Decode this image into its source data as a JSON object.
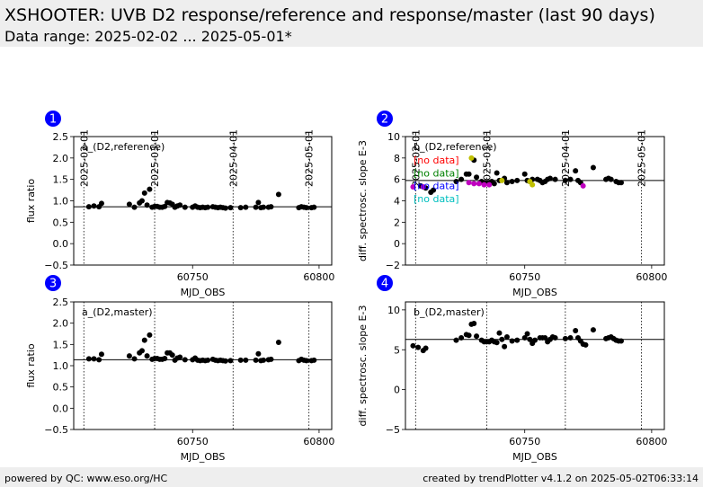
{
  "header": {
    "title": "XSHOOTER: UVB D2 response/reference and response/master (last 90 days)",
    "subtitle": "Data range: 2025-02-02 ... 2025-05-01*"
  },
  "footer": {
    "left": "powered by QC: www.eso.org/HC",
    "right": "created by trendPlotter v4.1.2 on 2025-05-02T06:33:14"
  },
  "date_markers": [
    {
      "label": "2025-02-01",
      "mjd": 60707
    },
    {
      "label": "2025-03-01",
      "mjd": 60735
    },
    {
      "label": "2025-04-01",
      "mjd": 60766
    },
    {
      "label": "2025-05-01",
      "mjd": 60796
    }
  ],
  "colors": {
    "black": "#000000",
    "red": "#ff0000",
    "green": "#008000",
    "blue": "#0000ff",
    "cyan": "#00bfbf",
    "magenta": "#bf00bf",
    "olive": "#bfbf00",
    "badge": "#0000ff"
  },
  "chart_data": [
    {
      "id": "1",
      "type": "scatter",
      "label": "a_(D2,reference)",
      "xlabel": "MJD_OBS",
      "ylabel": "flux ratio",
      "xlim": [
        60703,
        60805
      ],
      "ylim": [
        -0.5,
        2.5
      ],
      "xticks": [
        60750,
        60800
      ],
      "yticks": [
        -0.5,
        0.0,
        0.5,
        1.0,
        1.5,
        2.0,
        2.5
      ],
      "ytick_labels": [
        "−0.5",
        "0.0",
        "0.5",
        "1.0",
        "1.5",
        "2.0",
        "2.5"
      ],
      "reference_line": 0.86,
      "series": [
        {
          "color": "black",
          "points": [
            [
              60709,
              0.86
            ],
            [
              60711,
              0.88
            ],
            [
              60713,
              0.86
            ],
            [
              60714,
              0.94
            ],
            [
              60725,
              0.92
            ],
            [
              60727,
              0.85
            ],
            [
              60729,
              0.95
            ],
            [
              60730,
              1.0
            ],
            [
              60731,
              1.18
            ],
            [
              60732,
              0.9
            ],
            [
              60733,
              1.27
            ],
            [
              60734,
              0.85
            ],
            [
              60735,
              0.87
            ],
            [
              60736,
              0.87
            ],
            [
              60737,
              0.85
            ],
            [
              60738,
              0.85
            ],
            [
              60739,
              0.87
            ],
            [
              60740,
              0.96
            ],
            [
              60741,
              0.95
            ],
            [
              60742,
              0.92
            ],
            [
              60743,
              0.85
            ],
            [
              60744,
              0.88
            ],
            [
              60745,
              0.9
            ],
            [
              60747,
              0.85
            ],
            [
              60750,
              0.85
            ],
            [
              60751,
              0.88
            ],
            [
              60752,
              0.85
            ],
            [
              60753,
              0.84
            ],
            [
              60754,
              0.85
            ],
            [
              60755,
              0.84
            ],
            [
              60756,
              0.85
            ],
            [
              60758,
              0.86
            ],
            [
              60759,
              0.85
            ],
            [
              60760,
              0.84
            ],
            [
              60761,
              0.85
            ],
            [
              60762,
              0.84
            ],
            [
              60763,
              0.83
            ],
            [
              60765,
              0.84
            ],
            [
              60769,
              0.84
            ],
            [
              60771,
              0.85
            ],
            [
              60775,
              0.85
            ],
            [
              60776,
              0.96
            ],
            [
              60777,
              0.84
            ],
            [
              60778,
              0.85
            ],
            [
              60780,
              0.85
            ],
            [
              60781,
              0.86
            ],
            [
              60784,
              1.15
            ],
            [
              60792,
              0.84
            ],
            [
              60793,
              0.86
            ],
            [
              60794,
              0.85
            ],
            [
              60795,
              0.84
            ],
            [
              60797,
              0.84
            ],
            [
              60798,
              0.85
            ]
          ]
        }
      ]
    },
    {
      "id": "2",
      "type": "scatter",
      "label": "b_(D2,reference)",
      "xlabel": "MJD_OBS",
      "ylabel": "diff. spectrosc. slope E-3",
      "xlim": [
        60703,
        60805
      ],
      "ylim": [
        -2,
        10
      ],
      "xticks": [
        60750,
        60800
      ],
      "yticks": [
        -2,
        0,
        2,
        4,
        6,
        8,
        10
      ],
      "ytick_labels": [
        "−2",
        "0",
        "2",
        "4",
        "6",
        "8",
        "10"
      ],
      "reference_line": 5.9,
      "legend": [
        {
          "text": "[no data]",
          "color": "red"
        },
        {
          "text": "[no data]",
          "color": "green"
        },
        {
          "text": "[no data]",
          "color": "blue"
        },
        {
          "text": "[no data]",
          "color": "cyan"
        }
      ],
      "series": [
        {
          "color": "black",
          "points": [
            [
              60709,
              5.4
            ],
            [
              60711,
              5.2
            ],
            [
              60713,
              4.8
            ],
            [
              60714,
              5.0
            ],
            [
              60723,
              5.8
            ],
            [
              60725,
              6.0
            ],
            [
              60727,
              6.5
            ],
            [
              60728,
              6.5
            ],
            [
              60730,
              7.8
            ],
            [
              60731,
              6.2
            ],
            [
              60733,
              5.8
            ],
            [
              60734,
              5.7
            ],
            [
              60736,
              5.7
            ],
            [
              60737,
              5.8
            ],
            [
              60738,
              5.6
            ],
            [
              60739,
              6.6
            ],
            [
              60740,
              5.9
            ],
            [
              60742,
              6.1
            ],
            [
              60743,
              5.7
            ],
            [
              60745,
              5.8
            ],
            [
              60747,
              5.9
            ],
            [
              60750,
              6.5
            ],
            [
              60751,
              5.9
            ],
            [
              60752,
              5.8
            ],
            [
              60753,
              6.0
            ],
            [
              60755,
              6.0
            ],
            [
              60756,
              5.9
            ],
            [
              60757,
              5.7
            ],
            [
              60758,
              5.8
            ],
            [
              60759,
              6.0
            ],
            [
              60760,
              6.1
            ],
            [
              60762,
              6.0
            ],
            [
              60766,
              5.9
            ],
            [
              60768,
              6.0
            ],
            [
              60770,
              6.8
            ],
            [
              60771,
              5.9
            ],
            [
              60772,
              5.7
            ],
            [
              60777,
              7.1
            ],
            [
              60782,
              6.0
            ],
            [
              60783,
              6.1
            ],
            [
              60784,
              6.0
            ],
            [
              60786,
              5.8
            ],
            [
              60787,
              5.7
            ],
            [
              60788,
              5.7
            ]
          ]
        },
        {
          "color": "magenta",
          "points": [
            [
              60706,
              5.3
            ],
            [
              60710,
              5.3
            ],
            [
              60728,
              5.7
            ],
            [
              60730,
              5.6
            ],
            [
              60732,
              5.6
            ],
            [
              60734,
              5.5
            ],
            [
              60736,
              5.5
            ],
            [
              60773,
              5.4
            ]
          ]
        },
        {
          "color": "olive",
          "points": [
            [
              60729,
              8.0
            ],
            [
              60741,
              5.9
            ],
            [
              60752,
              5.8
            ],
            [
              60753,
              5.5
            ]
          ]
        }
      ]
    },
    {
      "id": "3",
      "type": "scatter",
      "label": "a_(D2,master)",
      "xlabel": "MJD_OBS",
      "ylabel": "flux ratio",
      "xlim": [
        60703,
        60805
      ],
      "ylim": [
        -0.5,
        2.5
      ],
      "xticks": [
        60750,
        60800
      ],
      "yticks": [
        -0.5,
        0.0,
        0.5,
        1.0,
        1.5,
        2.0,
        2.5
      ],
      "ytick_labels": [
        "−0.5",
        "0.0",
        "0.5",
        "1.0",
        "1.5",
        "2.0",
        "2.5"
      ],
      "reference_line": 1.14,
      "series": [
        {
          "color": "black",
          "points": [
            [
              60709,
              1.16
            ],
            [
              60711,
              1.16
            ],
            [
              60713,
              1.14
            ],
            [
              60714,
              1.27
            ],
            [
              60725,
              1.23
            ],
            [
              60727,
              1.16
            ],
            [
              60729,
              1.3
            ],
            [
              60730,
              1.35
            ],
            [
              60731,
              1.6
            ],
            [
              60732,
              1.23
            ],
            [
              60733,
              1.72
            ],
            [
              60734,
              1.15
            ],
            [
              60735,
              1.17
            ],
            [
              60736,
              1.17
            ],
            [
              60737,
              1.15
            ],
            [
              60738,
              1.15
            ],
            [
              60739,
              1.17
            ],
            [
              60740,
              1.3
            ],
            [
              60741,
              1.3
            ],
            [
              60742,
              1.25
            ],
            [
              60743,
              1.13
            ],
            [
              60744,
              1.18
            ],
            [
              60745,
              1.2
            ],
            [
              60747,
              1.14
            ],
            [
              60750,
              1.14
            ],
            [
              60751,
              1.18
            ],
            [
              60752,
              1.13
            ],
            [
              60753,
              1.12
            ],
            [
              60754,
              1.13
            ],
            [
              60755,
              1.12
            ],
            [
              60756,
              1.13
            ],
            [
              60758,
              1.15
            ],
            [
              60759,
              1.13
            ],
            [
              60760,
              1.12
            ],
            [
              60761,
              1.13
            ],
            [
              60762,
              1.12
            ],
            [
              60763,
              1.11
            ],
            [
              60765,
              1.12
            ],
            [
              60769,
              1.13
            ],
            [
              60771,
              1.13
            ],
            [
              60775,
              1.13
            ],
            [
              60776,
              1.28
            ],
            [
              60777,
              1.12
            ],
            [
              60778,
              1.13
            ],
            [
              60780,
              1.14
            ],
            [
              60781,
              1.15
            ],
            [
              60784,
              1.55
            ],
            [
              60792,
              1.12
            ],
            [
              60793,
              1.15
            ],
            [
              60794,
              1.13
            ],
            [
              60795,
              1.12
            ],
            [
              60797,
              1.12
            ],
            [
              60798,
              1.13
            ]
          ]
        }
      ]
    },
    {
      "id": "4",
      "type": "scatter",
      "label": "b_(D2,master)",
      "xlabel": "MJD_OBS",
      "ylabel": "diff. spectrosc. slope E-3",
      "xlim": [
        60703,
        60805
      ],
      "ylim": [
        -5,
        11
      ],
      "xticks": [
        60750,
        60800
      ],
      "yticks": [
        -5,
        0,
        5,
        10
      ],
      "ytick_labels": [
        "−5",
        "0",
        "5",
        "10"
      ],
      "reference_line": 6.3,
      "series": [
        {
          "color": "black",
          "points": [
            [
              60706,
              5.5
            ],
            [
              60708,
              5.3
            ],
            [
              60710,
              4.9
            ],
            [
              60711,
              5.2
            ],
            [
              60723,
              6.2
            ],
            [
              60725,
              6.5
            ],
            [
              60727,
              6.9
            ],
            [
              60728,
              6.8
            ],
            [
              60730,
              8.3
            ],
            [
              60731,
              6.7
            ],
            [
              60733,
              6.2
            ],
            [
              60734,
              6.0
            ],
            [
              60735,
              6.0
            ],
            [
              60736,
              6.0
            ],
            [
              60737,
              6.2
            ],
            [
              60738,
              6.0
            ],
            [
              60739,
              5.9
            ],
            [
              60740,
              7.1
            ],
            [
              60741,
              6.3
            ],
            [
              60742,
              5.4
            ],
            [
              60743,
              6.6
            ],
            [
              60745,
              6.1
            ],
            [
              60747,
              6.2
            ],
            [
              60750,
              6.5
            ],
            [
              60751,
              7.0
            ],
            [
              60752,
              6.3
            ],
            [
              60753,
              5.8
            ],
            [
              60754,
              6.2
            ],
            [
              60756,
              6.5
            ],
            [
              60757,
              6.5
            ],
            [
              60758,
              6.5
            ],
            [
              60759,
              6.0
            ],
            [
              60760,
              6.3
            ],
            [
              60761,
              6.6
            ],
            [
              60762,
              6.5
            ],
            [
              60766,
              6.4
            ],
            [
              60768,
              6.5
            ],
            [
              60770,
              7.4
            ],
            [
              60771,
              6.5
            ],
            [
              60772,
              6.1
            ],
            [
              60773,
              5.7
            ],
            [
              60774,
              5.6
            ],
            [
              60777,
              7.5
            ],
            [
              60782,
              6.4
            ],
            [
              60783,
              6.5
            ],
            [
              60784,
              6.6
            ],
            [
              60785,
              6.4
            ],
            [
              60786,
              6.2
            ],
            [
              60787,
              6.1
            ],
            [
              60788,
              6.1
            ],
            [
              60729,
              8.2
            ]
          ]
        }
      ]
    }
  ]
}
